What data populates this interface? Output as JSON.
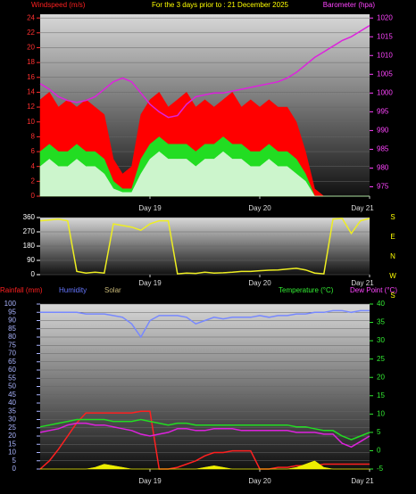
{
  "chart_data": [
    {
      "type": "line",
      "title": "For the 3 days prior to : 21 December 2025",
      "ylabel": "Windspeed (m/s)",
      "y2label": "Barometer (hpa)",
      "categories": [
        null,
        null,
        null,
        null,
        null,
        null,
        null,
        null,
        null,
        null,
        null,
        null,
        "Day 19",
        null,
        null,
        null,
        null,
        null,
        null,
        null,
        null,
        null,
        null,
        null,
        "Day 20",
        null,
        null,
        null,
        null,
        null,
        null,
        null,
        null,
        null,
        null,
        null,
        "Day 21"
      ],
      "ylim": [
        0,
        24.5
      ],
      "yticks": [
        0,
        2,
        4,
        6,
        8,
        10,
        12,
        14,
        16,
        18,
        20,
        22,
        24
      ],
      "y2lim": [
        972.5,
        1021
      ],
      "y2ticks": [
        975,
        980,
        985,
        990,
        995,
        1000,
        1005,
        1010,
        1015,
        1020
      ],
      "grid": true,
      "series": [
        {
          "color": "#ff0000",
          "area": true,
          "values": [
            13,
            14,
            12,
            13,
            12,
            13,
            12,
            11,
            5,
            3,
            4,
            11,
            13,
            14,
            12,
            13,
            14,
            12,
            13,
            12,
            13,
            14,
            12,
            13,
            12,
            13,
            12,
            12,
            10,
            6,
            1,
            0,
            0,
            0,
            0,
            0,
            0
          ]
        },
        {
          "color": "#22dd22",
          "area": true,
          "values": [
            6,
            7,
            6,
            6,
            7,
            6,
            6,
            5,
            2,
            1,
            1,
            5,
            7,
            8,
            7,
            7,
            7,
            6,
            7,
            7,
            8,
            7,
            7,
            6,
            6,
            7,
            6,
            6,
            5,
            3,
            0,
            0,
            0,
            0,
            0,
            0,
            0
          ]
        },
        {
          "color": "#ccf5cc",
          "area": true,
          "values": [
            4,
            5,
            4,
            4,
            5,
            4,
            4,
            3,
            1,
            0.5,
            0.5,
            3,
            5,
            6,
            5,
            5,
            5,
            4,
            5,
            5,
            6,
            5,
            5,
            4,
            4,
            5,
            4,
            4,
            3,
            2,
            0,
            0,
            0,
            0,
            0,
            0,
            0
          ]
        },
        {
          "color": "#dd22dd",
          "axis": "y2",
          "values": [
            1002.5,
            1001,
            999,
            998,
            997.5,
            998,
            999,
            1001,
            1003,
            1004,
            1003,
            1000,
            997,
            995,
            993.5,
            994,
            997,
            999,
            999.5,
            1000,
            1000,
            1000.5,
            1001,
            1001.5,
            1002,
            1002.5,
            1003,
            1004,
            1005.5,
            1007.5,
            1009.5,
            1011,
            1012.5,
            1014,
            1015,
            1016.5,
            1018
          ]
        }
      ]
    },
    {
      "type": "line",
      "compass_labels": [
        "S",
        "E",
        "N",
        "W",
        "S"
      ],
      "categories": [
        null,
        null,
        null,
        null,
        null,
        null,
        null,
        null,
        null,
        null,
        null,
        null,
        "Day 19",
        null,
        null,
        null,
        null,
        null,
        null,
        null,
        null,
        null,
        null,
        null,
        "Day 20",
        null,
        null,
        null,
        null,
        null,
        null,
        null,
        null,
        null,
        null,
        null,
        "Day 21"
      ],
      "ylim": [
        0,
        360
      ],
      "yticks": [
        0,
        90,
        180,
        270,
        360
      ],
      "grid": true,
      "series": [
        {
          "color": "#eeee22",
          "values": [
            340,
            345,
            350,
            340,
            20,
            10,
            15,
            10,
            320,
            310,
            300,
            280,
            320,
            340,
            340,
            5,
            10,
            8,
            15,
            10,
            12,
            15,
            20,
            20,
            25,
            28,
            30,
            35,
            40,
            30,
            10,
            5,
            350,
            355,
            260,
            340,
            355
          ]
        }
      ]
    },
    {
      "type": "line",
      "categories": [
        null,
        null,
        null,
        null,
        null,
        null,
        null,
        null,
        null,
        null,
        null,
        null,
        "Day 19",
        null,
        null,
        null,
        null,
        null,
        null,
        null,
        null,
        null,
        null,
        null,
        "Day 20",
        null,
        null,
        null,
        null,
        null,
        null,
        null,
        null,
        null,
        null,
        null,
        "Day 21"
      ],
      "ylim": [
        0,
        100
      ],
      "yticks": [
        0,
        5,
        10,
        15,
        20,
        25,
        30,
        35,
        40,
        45,
        50,
        55,
        60,
        65,
        70,
        75,
        80,
        85,
        90,
        95,
        100
      ],
      "y2lim": [
        -5,
        40
      ],
      "y2ticks": [
        -5,
        0,
        5,
        10,
        15,
        20,
        25,
        30,
        35,
        40
      ],
      "grid": true,
      "series": [
        {
          "name": "Rainfall (mm)",
          "color": "#ff2020",
          "values": [
            0,
            5,
            12,
            20,
            28,
            34,
            34,
            34,
            34,
            34,
            34,
            35,
            35,
            0,
            0,
            1,
            3,
            5,
            8,
            10,
            10,
            11,
            11,
            11,
            0,
            0,
            1,
            1,
            2,
            2,
            2,
            3,
            3,
            3,
            3,
            3,
            3
          ]
        },
        {
          "name": "Humidity",
          "color": "#7788ff",
          "values": [
            95,
            95,
            95,
            95,
            95,
            94,
            94,
            94,
            93,
            92,
            88,
            80,
            90,
            93,
            93,
            93,
            92,
            88,
            90,
            92,
            91,
            92,
            92,
            92,
            93,
            92,
            93,
            93,
            94,
            94,
            95,
            95,
            96,
            96,
            95,
            96,
            96
          ]
        },
        {
          "name": "Solar",
          "color": "#eeee00",
          "area": true,
          "values": [
            0,
            0,
            0,
            0,
            0,
            0,
            1,
            3,
            2,
            1,
            0,
            0,
            0,
            0,
            0,
            0,
            0,
            0,
            1,
            2,
            1,
            0,
            0,
            0,
            0,
            0,
            0,
            0,
            1,
            3,
            5,
            1,
            0,
            0,
            0,
            0,
            0
          ]
        },
        {
          "name": "Temperature (°C)",
          "color": "#22dd22",
          "axis": "y2",
          "values": [
            6.5,
            7,
            7.5,
            8,
            8.5,
            8.5,
            8.5,
            8.5,
            8,
            8,
            8,
            8.5,
            8,
            7.5,
            7,
            7.5,
            7.5,
            7,
            7,
            7,
            7,
            7,
            7,
            7,
            7,
            7,
            7,
            7,
            6.5,
            6.5,
            6,
            5.5,
            5.5,
            4,
            3,
            4,
            5
          ]
        },
        {
          "name": "Dew Point (°C)",
          "color": "#dd22dd",
          "axis": "y2",
          "values": [
            5,
            5.5,
            6,
            7,
            7.5,
            7.5,
            7,
            7,
            6.5,
            6,
            5.5,
            4.5,
            4,
            4.5,
            5,
            6,
            6,
            5.5,
            5.5,
            6,
            6,
            6,
            5.5,
            5.5,
            5.5,
            5.5,
            5.5,
            5.5,
            5,
            5,
            5,
            4.5,
            4.5,
            2,
            1,
            2.5,
            4
          ]
        }
      ]
    }
  ]
}
